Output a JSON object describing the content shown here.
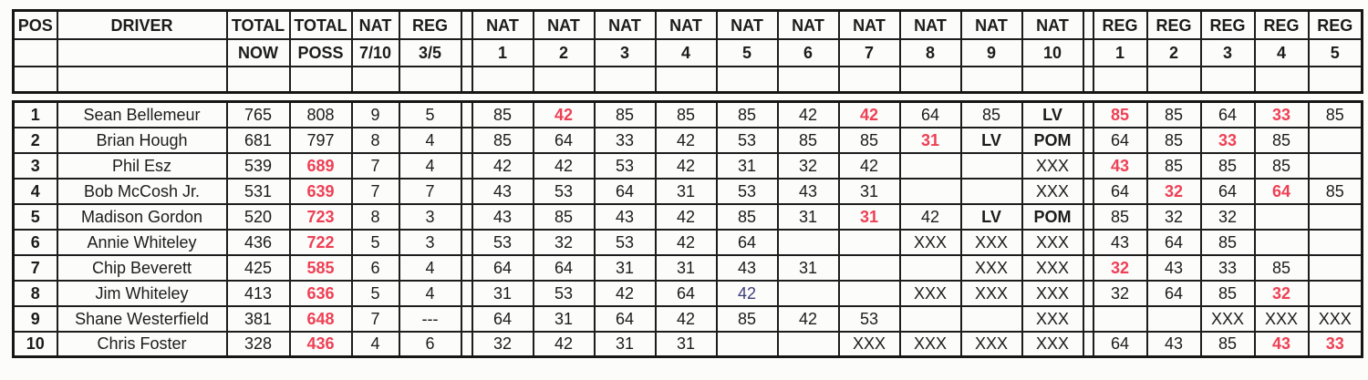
{
  "colors": {
    "red": "#ee4054",
    "blue": "#3d3d78",
    "ink": "#1c1c1c"
  },
  "header": {
    "row1": [
      "POS",
      "DRIVER",
      "TOTAL",
      "TOTAL",
      "NAT",
      "REG",
      "",
      "NAT",
      "NAT",
      "NAT",
      "NAT",
      "NAT",
      "NAT",
      "NAT",
      "NAT",
      "NAT",
      "NAT",
      "",
      "REG",
      "REG",
      "REG",
      "REG",
      "REG"
    ],
    "row2": [
      "",
      "",
      "NOW",
      "POSS",
      "7/10",
      "3/5",
      "",
      "1",
      "2",
      "3",
      "4",
      "5",
      "6",
      "7",
      "8",
      "9",
      "10",
      "",
      "1",
      "2",
      "3",
      "4",
      "5"
    ]
  },
  "rows": [
    {
      "pos": "1",
      "driver": "Sean Bellemeur",
      "now": "765",
      "poss": {
        "t": "808"
      },
      "natn": "9",
      "regn": "5",
      "nat": [
        {
          "t": "85"
        },
        {
          "t": "42",
          "s": "red"
        },
        {
          "t": "85"
        },
        {
          "t": "85"
        },
        {
          "t": "85"
        },
        {
          "t": "42"
        },
        {
          "t": "42",
          "s": "red"
        },
        {
          "t": "64"
        },
        {
          "t": "85"
        },
        {
          "t": "LV",
          "s": "bold"
        }
      ],
      "reg": [
        {
          "t": "85",
          "s": "red"
        },
        {
          "t": "85"
        },
        {
          "t": "64"
        },
        {
          "t": "33",
          "s": "red"
        },
        {
          "t": "85"
        }
      ]
    },
    {
      "pos": "2",
      "driver": "Brian Hough",
      "now": "681",
      "poss": {
        "t": "797"
      },
      "natn": "8",
      "regn": "4",
      "nat": [
        {
          "t": "85"
        },
        {
          "t": "64"
        },
        {
          "t": "33"
        },
        {
          "t": "42"
        },
        {
          "t": "53"
        },
        {
          "t": "85"
        },
        {
          "t": "85"
        },
        {
          "t": "31",
          "s": "red"
        },
        {
          "t": "LV",
          "s": "bold"
        },
        {
          "t": "POM",
          "s": "bold"
        }
      ],
      "reg": [
        {
          "t": "64"
        },
        {
          "t": "85"
        },
        {
          "t": "33",
          "s": "red"
        },
        {
          "t": "85"
        },
        {
          "t": ""
        }
      ]
    },
    {
      "pos": "3",
      "driver": "Phil Esz",
      "now": "539",
      "poss": {
        "t": "689",
        "s": "red"
      },
      "natn": "7",
      "regn": "4",
      "nat": [
        {
          "t": "42"
        },
        {
          "t": "42"
        },
        {
          "t": "53"
        },
        {
          "t": "42"
        },
        {
          "t": "31"
        },
        {
          "t": "32"
        },
        {
          "t": "42"
        },
        {
          "t": ""
        },
        {
          "t": ""
        },
        {
          "t": "XXX"
        }
      ],
      "reg": [
        {
          "t": "43",
          "s": "red"
        },
        {
          "t": "85"
        },
        {
          "t": "85"
        },
        {
          "t": "85"
        },
        {
          "t": ""
        }
      ]
    },
    {
      "pos": "4",
      "driver": "Bob McCosh Jr.",
      "now": "531",
      "poss": {
        "t": "639",
        "s": "red"
      },
      "natn": "7",
      "regn": "7",
      "nat": [
        {
          "t": "43"
        },
        {
          "t": "53"
        },
        {
          "t": "64"
        },
        {
          "t": "31"
        },
        {
          "t": "53"
        },
        {
          "t": "43"
        },
        {
          "t": "31"
        },
        {
          "t": ""
        },
        {
          "t": ""
        },
        {
          "t": "XXX"
        }
      ],
      "reg": [
        {
          "t": "64"
        },
        {
          "t": "32",
          "s": "red"
        },
        {
          "t": "64"
        },
        {
          "t": "64",
          "s": "red"
        },
        {
          "t": "85"
        }
      ]
    },
    {
      "pos": "5",
      "driver": "Madison Gordon",
      "now": "520",
      "poss": {
        "t": "723",
        "s": "red"
      },
      "natn": "8",
      "regn": "3",
      "nat": [
        {
          "t": "43"
        },
        {
          "t": "85"
        },
        {
          "t": "43"
        },
        {
          "t": "42"
        },
        {
          "t": "85"
        },
        {
          "t": "31"
        },
        {
          "t": "31",
          "s": "red"
        },
        {
          "t": "42"
        },
        {
          "t": "LV",
          "s": "bold"
        },
        {
          "t": "POM",
          "s": "bold"
        }
      ],
      "reg": [
        {
          "t": "85"
        },
        {
          "t": "32"
        },
        {
          "t": "32"
        },
        {
          "t": ""
        },
        {
          "t": ""
        }
      ]
    },
    {
      "pos": "6",
      "driver": "Annie Whiteley",
      "now": "436",
      "poss": {
        "t": "722",
        "s": "red"
      },
      "natn": "5",
      "regn": "3",
      "nat": [
        {
          "t": "53"
        },
        {
          "t": "32"
        },
        {
          "t": "53"
        },
        {
          "t": "42"
        },
        {
          "t": "64"
        },
        {
          "t": ""
        },
        {
          "t": ""
        },
        {
          "t": "XXX"
        },
        {
          "t": "XXX"
        },
        {
          "t": "XXX"
        }
      ],
      "reg": [
        {
          "t": "43"
        },
        {
          "t": "64"
        },
        {
          "t": "85"
        },
        {
          "t": ""
        },
        {
          "t": ""
        }
      ]
    },
    {
      "pos": "7",
      "driver": "Chip Beverett",
      "now": "425",
      "poss": {
        "t": "585",
        "s": "red"
      },
      "natn": "6",
      "regn": "4",
      "nat": [
        {
          "t": "64"
        },
        {
          "t": "64"
        },
        {
          "t": "31"
        },
        {
          "t": "31"
        },
        {
          "t": "43"
        },
        {
          "t": "31"
        },
        {
          "t": ""
        },
        {
          "t": ""
        },
        {
          "t": "XXX"
        },
        {
          "t": "XXX"
        }
      ],
      "reg": [
        {
          "t": "32",
          "s": "red"
        },
        {
          "t": "43"
        },
        {
          "t": "33"
        },
        {
          "t": "85"
        },
        {
          "t": ""
        }
      ]
    },
    {
      "pos": "8",
      "driver": "Jim Whiteley",
      "now": "413",
      "poss": {
        "t": "636",
        "s": "red"
      },
      "natn": "5",
      "regn": "4",
      "nat": [
        {
          "t": "31"
        },
        {
          "t": "53"
        },
        {
          "t": "42"
        },
        {
          "t": "64"
        },
        {
          "t": "42",
          "s": "blue"
        },
        {
          "t": ""
        },
        {
          "t": ""
        },
        {
          "t": "XXX"
        },
        {
          "t": "XXX"
        },
        {
          "t": "XXX"
        }
      ],
      "reg": [
        {
          "t": "32"
        },
        {
          "t": "64"
        },
        {
          "t": "85"
        },
        {
          "t": "32",
          "s": "red"
        },
        {
          "t": ""
        }
      ]
    },
    {
      "pos": "9",
      "driver": "Shane Westerfield",
      "now": "381",
      "poss": {
        "t": "648",
        "s": "red"
      },
      "natn": "7",
      "regn": "---",
      "nat": [
        {
          "t": "64"
        },
        {
          "t": "31"
        },
        {
          "t": "64"
        },
        {
          "t": "42"
        },
        {
          "t": "85"
        },
        {
          "t": "42"
        },
        {
          "t": "53"
        },
        {
          "t": ""
        },
        {
          "t": ""
        },
        {
          "t": "XXX"
        }
      ],
      "reg": [
        {
          "t": ""
        },
        {
          "t": ""
        },
        {
          "t": "XXX"
        },
        {
          "t": "XXX"
        },
        {
          "t": "XXX"
        }
      ]
    },
    {
      "pos": "10",
      "driver": "Chris Foster",
      "now": "328",
      "poss": {
        "t": "436",
        "s": "red"
      },
      "natn": "4",
      "regn": "6",
      "nat": [
        {
          "t": "32"
        },
        {
          "t": "42"
        },
        {
          "t": "31"
        },
        {
          "t": "31"
        },
        {
          "t": ""
        },
        {
          "t": ""
        },
        {
          "t": "XXX"
        },
        {
          "t": "XXX"
        },
        {
          "t": "XXX"
        },
        {
          "t": "XXX"
        }
      ],
      "reg": [
        {
          "t": "64"
        },
        {
          "t": "43"
        },
        {
          "t": "85"
        },
        {
          "t": "43",
          "s": "red"
        },
        {
          "t": "33",
          "s": "red"
        }
      ]
    }
  ]
}
